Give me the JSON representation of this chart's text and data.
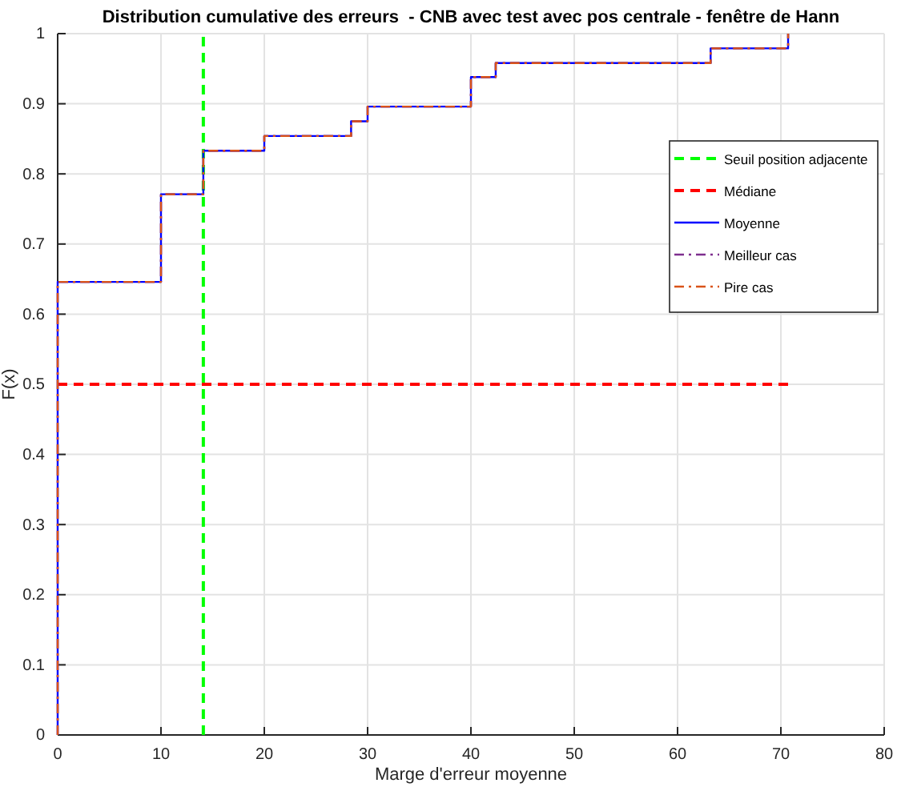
{
  "chart_data": {
    "type": "step",
    "title": "Distribution cumulative des erreurs  - CNB avec test avec pos centrale - fenêtre de Hann",
    "xlabel": "Marge d'erreur moyenne",
    "ylabel": "F(x)",
    "xlim": [
      0,
      80
    ],
    "xticks": [
      0,
      10,
      20,
      30,
      40,
      50,
      60,
      70,
      80
    ],
    "ylim": [
      0,
      1
    ],
    "yticks": [
      0,
      0.1,
      0.2,
      0.3,
      0.4,
      0.5,
      0.6,
      0.7,
      0.8,
      0.9,
      1
    ],
    "grid": true,
    "legend": "top right",
    "series": [
      {
        "name": "Seuil position adjacente",
        "type": "line",
        "line_style": "dashed",
        "color": "#00ff00",
        "x": [
          14.1,
          14.1
        ],
        "values": [
          0,
          1
        ]
      },
      {
        "name": "Médiane",
        "type": "line",
        "line_style": "dashed",
        "color": "#ff0000",
        "x": [
          0,
          70.7
        ],
        "values": [
          0.5,
          0.5
        ]
      },
      {
        "name": "Moyenne",
        "type": "step",
        "line_style": "solid",
        "color": "#0000ff",
        "x": [
          0,
          0,
          10,
          14.1,
          20,
          28.4,
          30,
          40,
          42.4,
          63.2,
          70.7
        ],
        "values": [
          0,
          0.646,
          0.771,
          0.833,
          0.854,
          0.875,
          0.896,
          0.938,
          0.958,
          0.979,
          1
        ]
      },
      {
        "name": "Meilleur cas",
        "type": "step",
        "line_style": "dashdot",
        "color": "#7e2f8e",
        "x": [
          0,
          0,
          10,
          14.1,
          20,
          28.4,
          30,
          40,
          42.4,
          63.2,
          70.7
        ],
        "values": [
          0,
          0.646,
          0.771,
          0.833,
          0.854,
          0.875,
          0.896,
          0.938,
          0.958,
          0.979,
          1
        ]
      },
      {
        "name": "Pire cas",
        "type": "step",
        "line_style": "dashdot",
        "color": "#d95319",
        "x": [
          0,
          0,
          10,
          14.1,
          20,
          28.4,
          30,
          40,
          42.4,
          63.2,
          70.7
        ],
        "values": [
          0,
          0.646,
          0.771,
          0.833,
          0.854,
          0.875,
          0.896,
          0.938,
          0.958,
          0.979,
          1
        ]
      }
    ]
  }
}
